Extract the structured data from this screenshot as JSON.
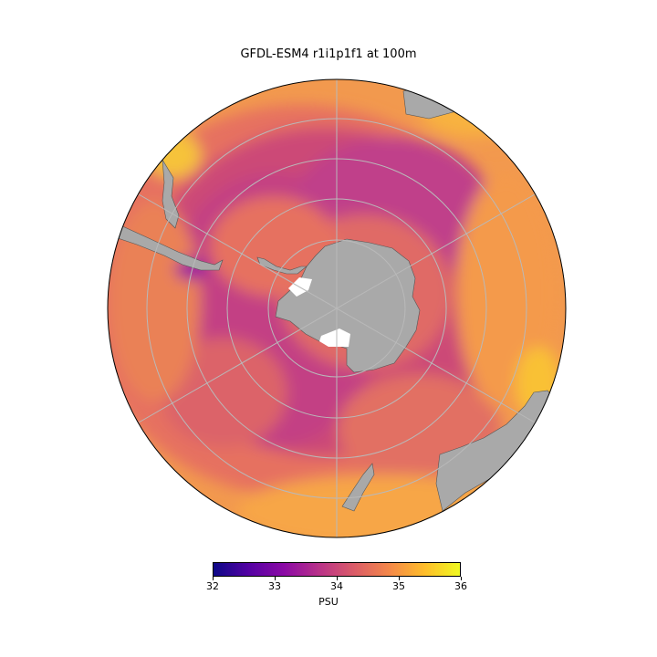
{
  "title": "GFDL-ESM4 r1i1p1f1 at 100m",
  "colorbar": {
    "label": "PSU",
    "colormap": "plasma",
    "range": [
      32,
      36
    ],
    "ticks": [
      "32",
      "33",
      "34",
      "35",
      "36"
    ]
  },
  "map": {
    "projection": "south-polar-stereographic",
    "variable": "salinity",
    "depth": "100m",
    "land_color": "#a9a9a9",
    "gridlines": true
  }
}
